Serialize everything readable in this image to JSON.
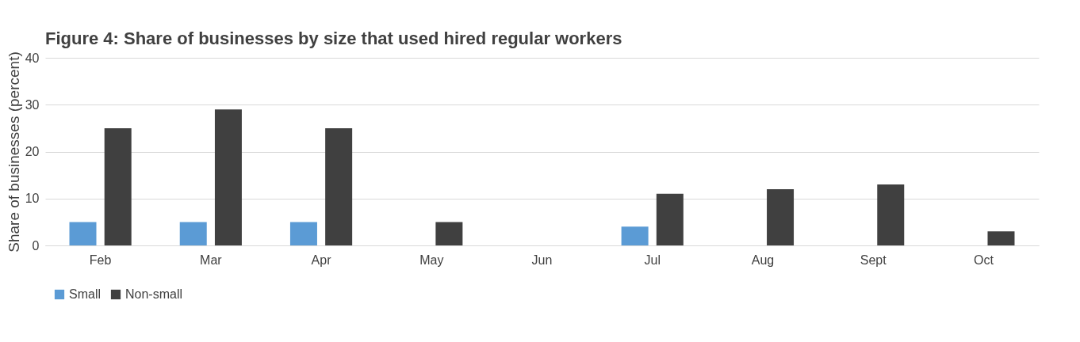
{
  "chart_data": {
    "type": "bar",
    "title": "Figure 4: Share of businesses by size that used hired regular workers",
    "ylabel": "Share of businesses (percent)",
    "categories": [
      "Feb",
      "Mar",
      "Apr",
      "May",
      "Jun",
      "Jul",
      "Aug",
      "Sept",
      "Oct"
    ],
    "series": [
      {
        "name": "Small",
        "color": "#5b9bd5",
        "values": [
          5,
          5,
          5,
          null,
          null,
          4,
          null,
          null,
          null
        ]
      },
      {
        "name": "Non-small",
        "color": "#404040",
        "values": [
          25,
          29,
          25,
          5,
          null,
          11,
          12,
          13,
          3
        ]
      }
    ],
    "ylim": [
      0,
      40
    ],
    "yticks": [
      0,
      10,
      20,
      30,
      40
    ],
    "grid": "y",
    "legend": "bottom"
  }
}
